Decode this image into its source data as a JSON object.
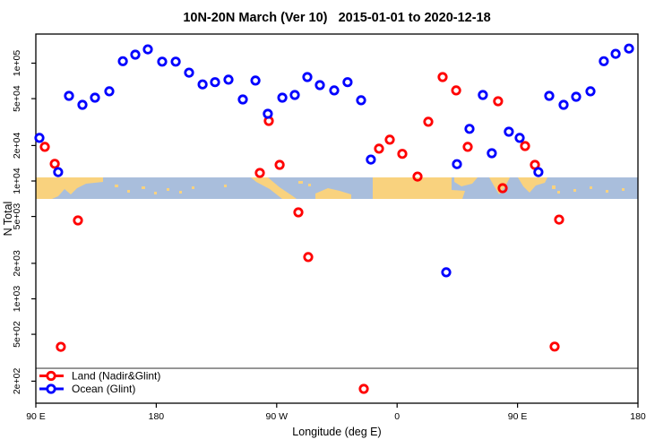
{
  "title": "10N-20N March (Ver 10)   2015-01-01 to 2020-12-18",
  "x_axis": {
    "label": "Longitude (deg E)",
    "ticks": [
      {
        "lon": 90,
        "label": "90 E"
      },
      {
        "lon": 180,
        "label": "180"
      },
      {
        "lon": 270,
        "label": "90 W"
      },
      {
        "lon": 360,
        "label": "0"
      },
      {
        "lon": 450,
        "label": "90 E"
      },
      {
        "lon": 540,
        "label": "180"
      }
    ]
  },
  "y_axis": {
    "label": "N Total",
    "ticks": [
      {
        "n": 100000,
        "label": "1e+05"
      },
      {
        "n": 50000,
        "label": "5e+04"
      },
      {
        "n": 20000,
        "label": "2e+04"
      },
      {
        "n": 10000,
        "label": "1e+04"
      },
      {
        "n": 5000,
        "label": "5e+03"
      },
      {
        "n": 2000,
        "label": "2e+03"
      },
      {
        "n": 1000,
        "label": "1e+03"
      },
      {
        "n": 500,
        "label": "5e+02"
      },
      {
        "n": 200,
        "label": "2e+02"
      }
    ]
  },
  "legend": {
    "items": [
      {
        "label": "Land (Nadir&Glint)",
        "color": "#ff0000"
      },
      {
        "label": "Ocean (Glint)",
        "color": "#0000ff"
      }
    ]
  },
  "reference_line": {
    "n": 257,
    "color": "#808080"
  },
  "map_strip": {
    "ocean_color": "#a9bedc",
    "land_color": "#f9d27e",
    "polygons": [
      "40,198 115,198 115,203 96,205 86,210 79,217 72,211 65,219 58,222 40,222",
      "280,198 299,198 312,209 327,219 331,222 315,222 301,211 286,203",
      "352,216 366,210 379,213 392,217 392,222 352,222",
      "416,198 504,198 504,212 519,213 516,222 416,222",
      "507,198 533,198 527,205 515,208 507,203",
      "546,198 569,198 564,208 557,217 551,207",
      "578,198 611,198 608,204 598,207 591,215 584,208"
    ],
    "specks": [
      [
        128,
        206,
        4,
        3
      ],
      [
        142,
        212,
        3,
        3
      ],
      [
        158,
        208,
        4,
        3
      ],
      [
        172,
        214,
        3,
        3
      ],
      [
        186,
        210,
        3,
        3
      ],
      [
        200,
        213,
        3,
        3
      ],
      [
        214,
        208,
        3,
        3
      ],
      [
        250,
        206,
        3,
        3
      ],
      [
        333,
        202,
        5,
        3
      ],
      [
        344,
        205,
        3,
        3
      ],
      [
        616,
        207,
        4,
        4
      ],
      [
        622,
        213,
        3,
        3
      ],
      [
        640,
        211,
        3,
        3
      ],
      [
        658,
        208,
        3,
        3
      ],
      [
        676,
        212,
        3,
        3
      ],
      [
        694,
        210,
        3,
        3
      ]
    ]
  },
  "chart_data": {
    "type": "scatter",
    "title": "10N-20N March (Ver 10)   2015-01-01 to 2020-12-18",
    "xlabel": "Longitude (deg E)",
    "ylabel": "N Total",
    "x_range_deg_e": [
      90,
      540
    ],
    "y_scale": "log",
    "y_range": [
      150,
      200000
    ],
    "grid": false,
    "legend_position": "bottom-left",
    "series": [
      {
        "name": "Land (Nadir&Glint)",
        "color": "#ff0000",
        "points": [
          [
            96.7,
            19500
          ],
          [
            104.1,
            14000
          ],
          [
            108.7,
            391
          ],
          [
            121.5,
            4630
          ],
          [
            257.4,
            11700
          ],
          [
            264.1,
            32300
          ],
          [
            272.2,
            13700
          ],
          [
            286.2,
            5420
          ],
          [
            293.6,
            2260
          ],
          [
            335.1,
            172
          ],
          [
            346.5,
            18800
          ],
          [
            354.5,
            22400
          ],
          [
            363.9,
            17000
          ],
          [
            375.3,
            10900
          ],
          [
            383.3,
            31800
          ],
          [
            394.0,
            76200
          ],
          [
            404.1,
            58700
          ],
          [
            412.8,
            19500
          ],
          [
            435.5,
            47500
          ],
          [
            438.9,
            8700
          ],
          [
            455.6,
            19800
          ],
          [
            463.0,
            13700
          ],
          [
            477.7,
            393
          ],
          [
            481.1,
            4700
          ]
        ]
      },
      {
        "name": "Ocean (Glint)",
        "color": "#0000ff",
        "points": [
          [
            92.7,
            23200
          ],
          [
            106.7,
            11900
          ],
          [
            114.8,
            52800
          ],
          [
            124.8,
            44300
          ],
          [
            134.2,
            51000
          ],
          [
            144.9,
            57700
          ],
          [
            155.0,
            104000
          ],
          [
            164.3,
            118000
          ],
          [
            173.7,
            131000
          ],
          [
            184.4,
            103000
          ],
          [
            194.5,
            103000
          ],
          [
            204.5,
            83000
          ],
          [
            214.6,
            66000
          ],
          [
            223.9,
            69000
          ],
          [
            234.0,
            72400
          ],
          [
            244.7,
            49200
          ],
          [
            254.1,
            71200
          ],
          [
            263.4,
            37200
          ],
          [
            274.2,
            51000
          ],
          [
            283.5,
            53700
          ],
          [
            292.9,
            76200
          ],
          [
            302.3,
            65100
          ],
          [
            313.0,
            58700
          ],
          [
            323.0,
            69000
          ],
          [
            333.1,
            48400
          ],
          [
            340.4,
            15200
          ],
          [
            396.7,
            1680
          ],
          [
            404.7,
            13900
          ],
          [
            414.1,
            27700
          ],
          [
            424.1,
            53700
          ],
          [
            430.8,
            17200
          ],
          [
            443.5,
            26200
          ],
          [
            451.6,
            23200
          ],
          [
            465.6,
            11900
          ],
          [
            473.7,
            52800
          ],
          [
            484.4,
            44300
          ],
          [
            493.8,
            51900
          ],
          [
            504.5,
            57700
          ],
          [
            514.5,
            104000
          ],
          [
            523.3,
            120000
          ],
          [
            533.3,
            133000
          ]
        ]
      }
    ]
  }
}
